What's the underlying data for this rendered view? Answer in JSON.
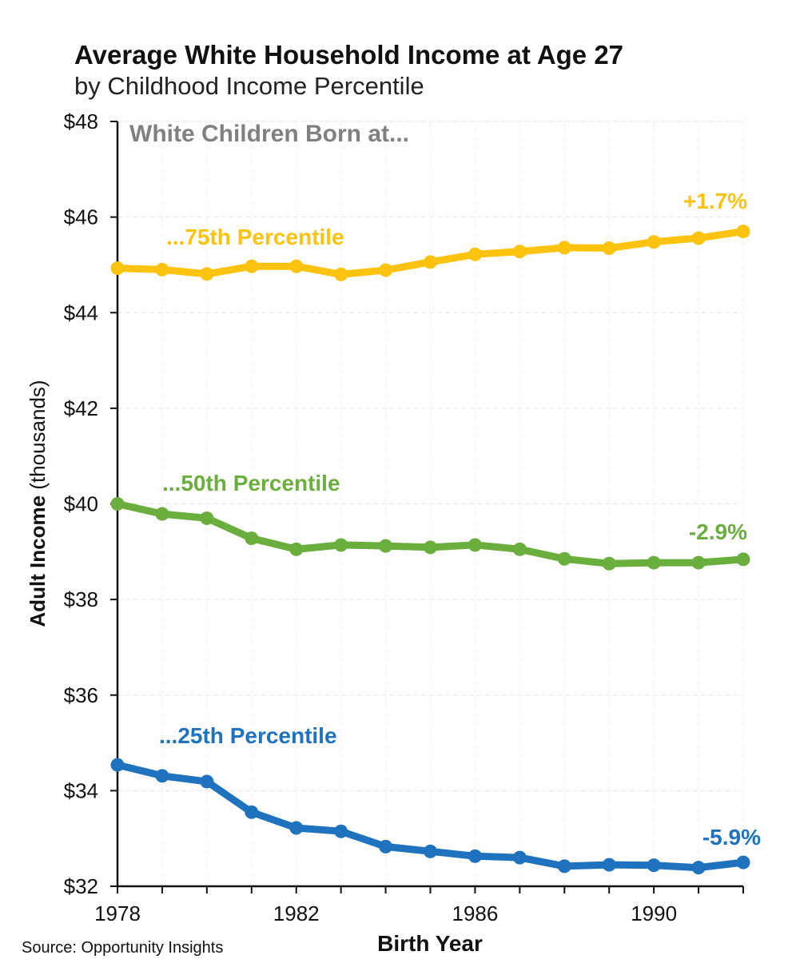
{
  "colors": {
    "p75": "#FBC20E",
    "p50": "#6AAE3E",
    "p25": "#1F72BE",
    "annotation": "#808080",
    "grid": "#e6e6e6"
  },
  "chart_data": {
    "type": "line",
    "title": "Average White Household Income at Age 27",
    "subtitle": "by Childhood Income Percentile",
    "xlabel": "Birth Year",
    "ylabel_bold": "Adult Income",
    "ylabel_rest": " (thousands)",
    "annotation": "White Children Born at...",
    "source": "Source: Opportunity Insights",
    "x": [
      1978,
      1979,
      1980,
      1981,
      1982,
      1983,
      1984,
      1985,
      1986,
      1987,
      1988,
      1989,
      1990,
      1991,
      1992
    ],
    "xticks": [
      1978,
      1982,
      1986,
      1990
    ],
    "xtick_labels": [
      "1978",
      "1982",
      "1986",
      "1990"
    ],
    "ylim": [
      32,
      48
    ],
    "yticks": [
      32,
      34,
      36,
      38,
      40,
      42,
      44,
      46,
      48
    ],
    "ytick_labels": [
      "$32",
      "$34",
      "$36",
      "$38",
      "$40",
      "$42",
      "$44",
      "$46",
      "$48"
    ],
    "grid": true,
    "series": [
      {
        "name": "...75th Percentile",
        "color": "#FBC20E",
        "change": "+1.7%",
        "values": [
          44.93,
          44.9,
          44.81,
          44.97,
          44.97,
          44.8,
          44.89,
          45.06,
          45.22,
          45.28,
          45.36,
          45.35,
          45.48,
          45.56,
          45.7
        ]
      },
      {
        "name": "...50th Percentile",
        "color": "#6AAE3E",
        "change": "-2.9%",
        "values": [
          40.0,
          39.79,
          39.7,
          39.28,
          39.05,
          39.14,
          39.12,
          39.09,
          39.14,
          39.05,
          38.85,
          38.75,
          38.77,
          38.77,
          38.84
        ]
      },
      {
        "name": "...25th Percentile",
        "color": "#1F72BE",
        "change": "-5.9%",
        "values": [
          34.54,
          34.31,
          34.19,
          33.55,
          33.22,
          33.15,
          32.83,
          32.73,
          32.63,
          32.6,
          32.42,
          32.45,
          32.44,
          32.39,
          32.5
        ]
      }
    ]
  }
}
